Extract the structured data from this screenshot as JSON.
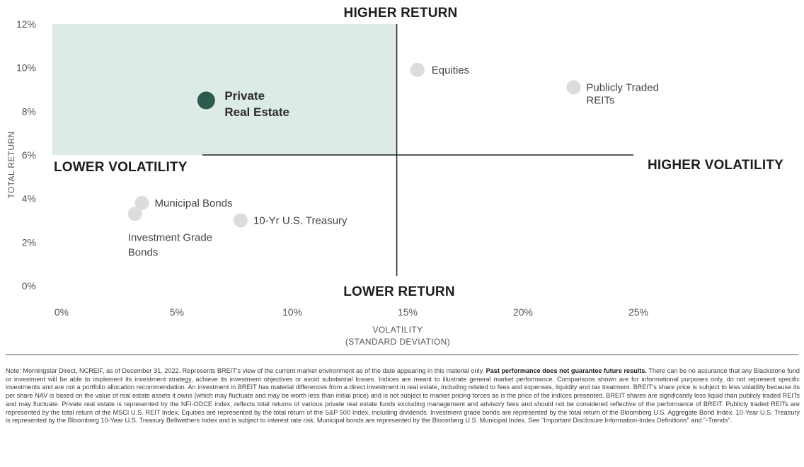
{
  "chart_data": {
    "type": "scatter",
    "x_title_lines": [
      "VOLATILITY",
      "(STANDARD DEVIATION)"
    ],
    "ylabel": "TOTAL RETURN",
    "xlim": [
      0,
      25
    ],
    "ylim": [
      0,
      12
    ],
    "x_ticks": [
      0,
      5,
      10,
      15,
      20,
      25
    ],
    "x_tick_labels": [
      "0%",
      "5%",
      "10%",
      "15%",
      "20%",
      "25%"
    ],
    "y_ticks": [
      0,
      2,
      4,
      6,
      8,
      10,
      12
    ],
    "y_tick_labels": [
      "0%",
      "2%",
      "4%",
      "6%",
      "8%",
      "10%",
      "12%"
    ],
    "crosshair": {
      "x": 15,
      "y": 6
    },
    "quadrant_labels": {
      "top": "HIGHER RETURN",
      "bottom": "LOWER RETURN",
      "left": "LOWER VOLATILITY",
      "right": "HIGHER VOLATILITY"
    },
    "highlight_region": {
      "x": [
        0,
        15
      ],
      "y": [
        6,
        12
      ],
      "color": "#dcebe6"
    },
    "points": [
      {
        "label_lines": [
          "Private",
          "Real Estate"
        ],
        "x": 6.7,
        "y": 8.5,
        "highlight": true,
        "color": "#2d5a4e"
      },
      {
        "label_lines": [
          "Equities"
        ],
        "x": 15.9,
        "y": 9.9,
        "highlight": false,
        "color": "#dcdcdc"
      },
      {
        "label_lines": [
          "Publicly Traded",
          "REITs"
        ],
        "x": 22.7,
        "y": 9.1,
        "highlight": false,
        "color": "#dcdcdc"
      },
      {
        "label_lines": [
          "Municipal Bonds"
        ],
        "x": 3.9,
        "y": 3.8,
        "highlight": false,
        "color": "#dcdcdc"
      },
      {
        "label_lines": [
          "Investment Grade",
          "Bonds"
        ],
        "x": 3.6,
        "y": 3.3,
        "highlight": false,
        "color": "#dcdcdc"
      },
      {
        "label_lines": [
          "10-Yr U.S. Treasury"
        ],
        "x": 8.2,
        "y": 3.0,
        "highlight": false,
        "color": "#dcdcdc"
      }
    ]
  },
  "note": {
    "text_before": "Note: Morningstar Direct, NCREIF, as of December 31, 2022. Represents BREIT's view of the current market environment as of the date appearing in this material only. ",
    "bold": "Past performance does not guarantee future results.",
    "text_after": " There can be no assurance that any Blackstone fund or investment will be able to implement its investment strategy, achieve its investment objectives or avoid substantial losses. Indices are meant to illustrate general market performance. Comparisons shown are for informational purposes only, do not represent specific investments and are not a portfolio allocation recommendation. An investment in BREIT has material differences from a direct investment in real estate, including related to fees and expenses, liquidity and tax treatment. BREIT's share price is subject to less volatility because its per share NAV is based on the value of real estate assets it owns (which may fluctuate and may be worth less than initial price) and is not subject to market pricing forces as is the price of the indices presented. BREIT shares are significantly less liquid than publicly traded REITs and may fluctuate. Private real estate is represented by the NFI-ODCE index, reflects total returns of various private real estate funds excluding management and advisory fees and should not be considered reflective of the performance of BREIT. Publicly traded REITs are represented by the total return of the MSCI U.S. REIT Index. Equities are represented by the total return of the S&P 500 Index, including dividends. Investment grade bonds are represented by the total return of the Bloomberg U.S. Aggregate Bond Index. 10-Year U.S. Treasury is represented by the Bloomberg 10-Year U.S. Treasury Bellwethers Index and is subject to interest rate risk. Municipal bonds are represented by the Bloomberg U.S. Municipal Index. See \"Important Disclosure Information-Index Definitions\" and \"-Trends\"."
  }
}
